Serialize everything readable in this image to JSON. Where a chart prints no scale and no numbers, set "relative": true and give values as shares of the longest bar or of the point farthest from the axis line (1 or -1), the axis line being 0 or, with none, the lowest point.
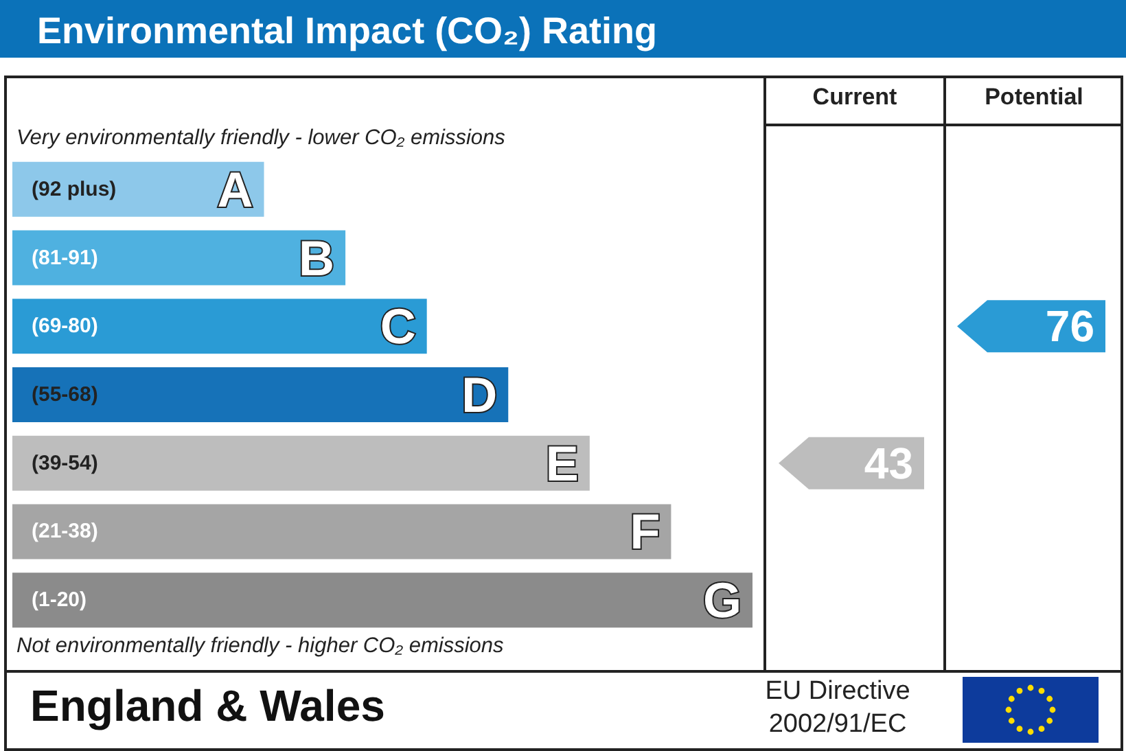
{
  "chart_data": {
    "type": "bar",
    "orientation": "horizontal",
    "relative": true,
    "title": "Environmental Impact (CO₂) Rating",
    "categories": [
      "(92 plus)",
      "(81-91)",
      "(69-80)",
      "(55-68)",
      "(39-54)",
      "(21-38)",
      "(1-20)"
    ],
    "values": [
      0.34,
      0.45,
      0.56,
      0.67,
      0.78,
      0.89,
      1
    ],
    "colors": [
      "#8dc8ea",
      "#4fb1e0",
      "#2a9bd5",
      "#1672b8",
      "#bdbdbd",
      "#a5a5a5",
      "#8b8b8b"
    ],
    "annotations": [
      "Very environmentally friendly - lower CO₂ emissions",
      "Not environmentally friendly - higher CO₂ emissions",
      "Current",
      "Potential",
      "43",
      "76",
      "England & Wales",
      "EU Directive 2002/91/EC",
      "A",
      "B",
      "C",
      "D",
      "E",
      "F",
      "G"
    ]
  }
}
